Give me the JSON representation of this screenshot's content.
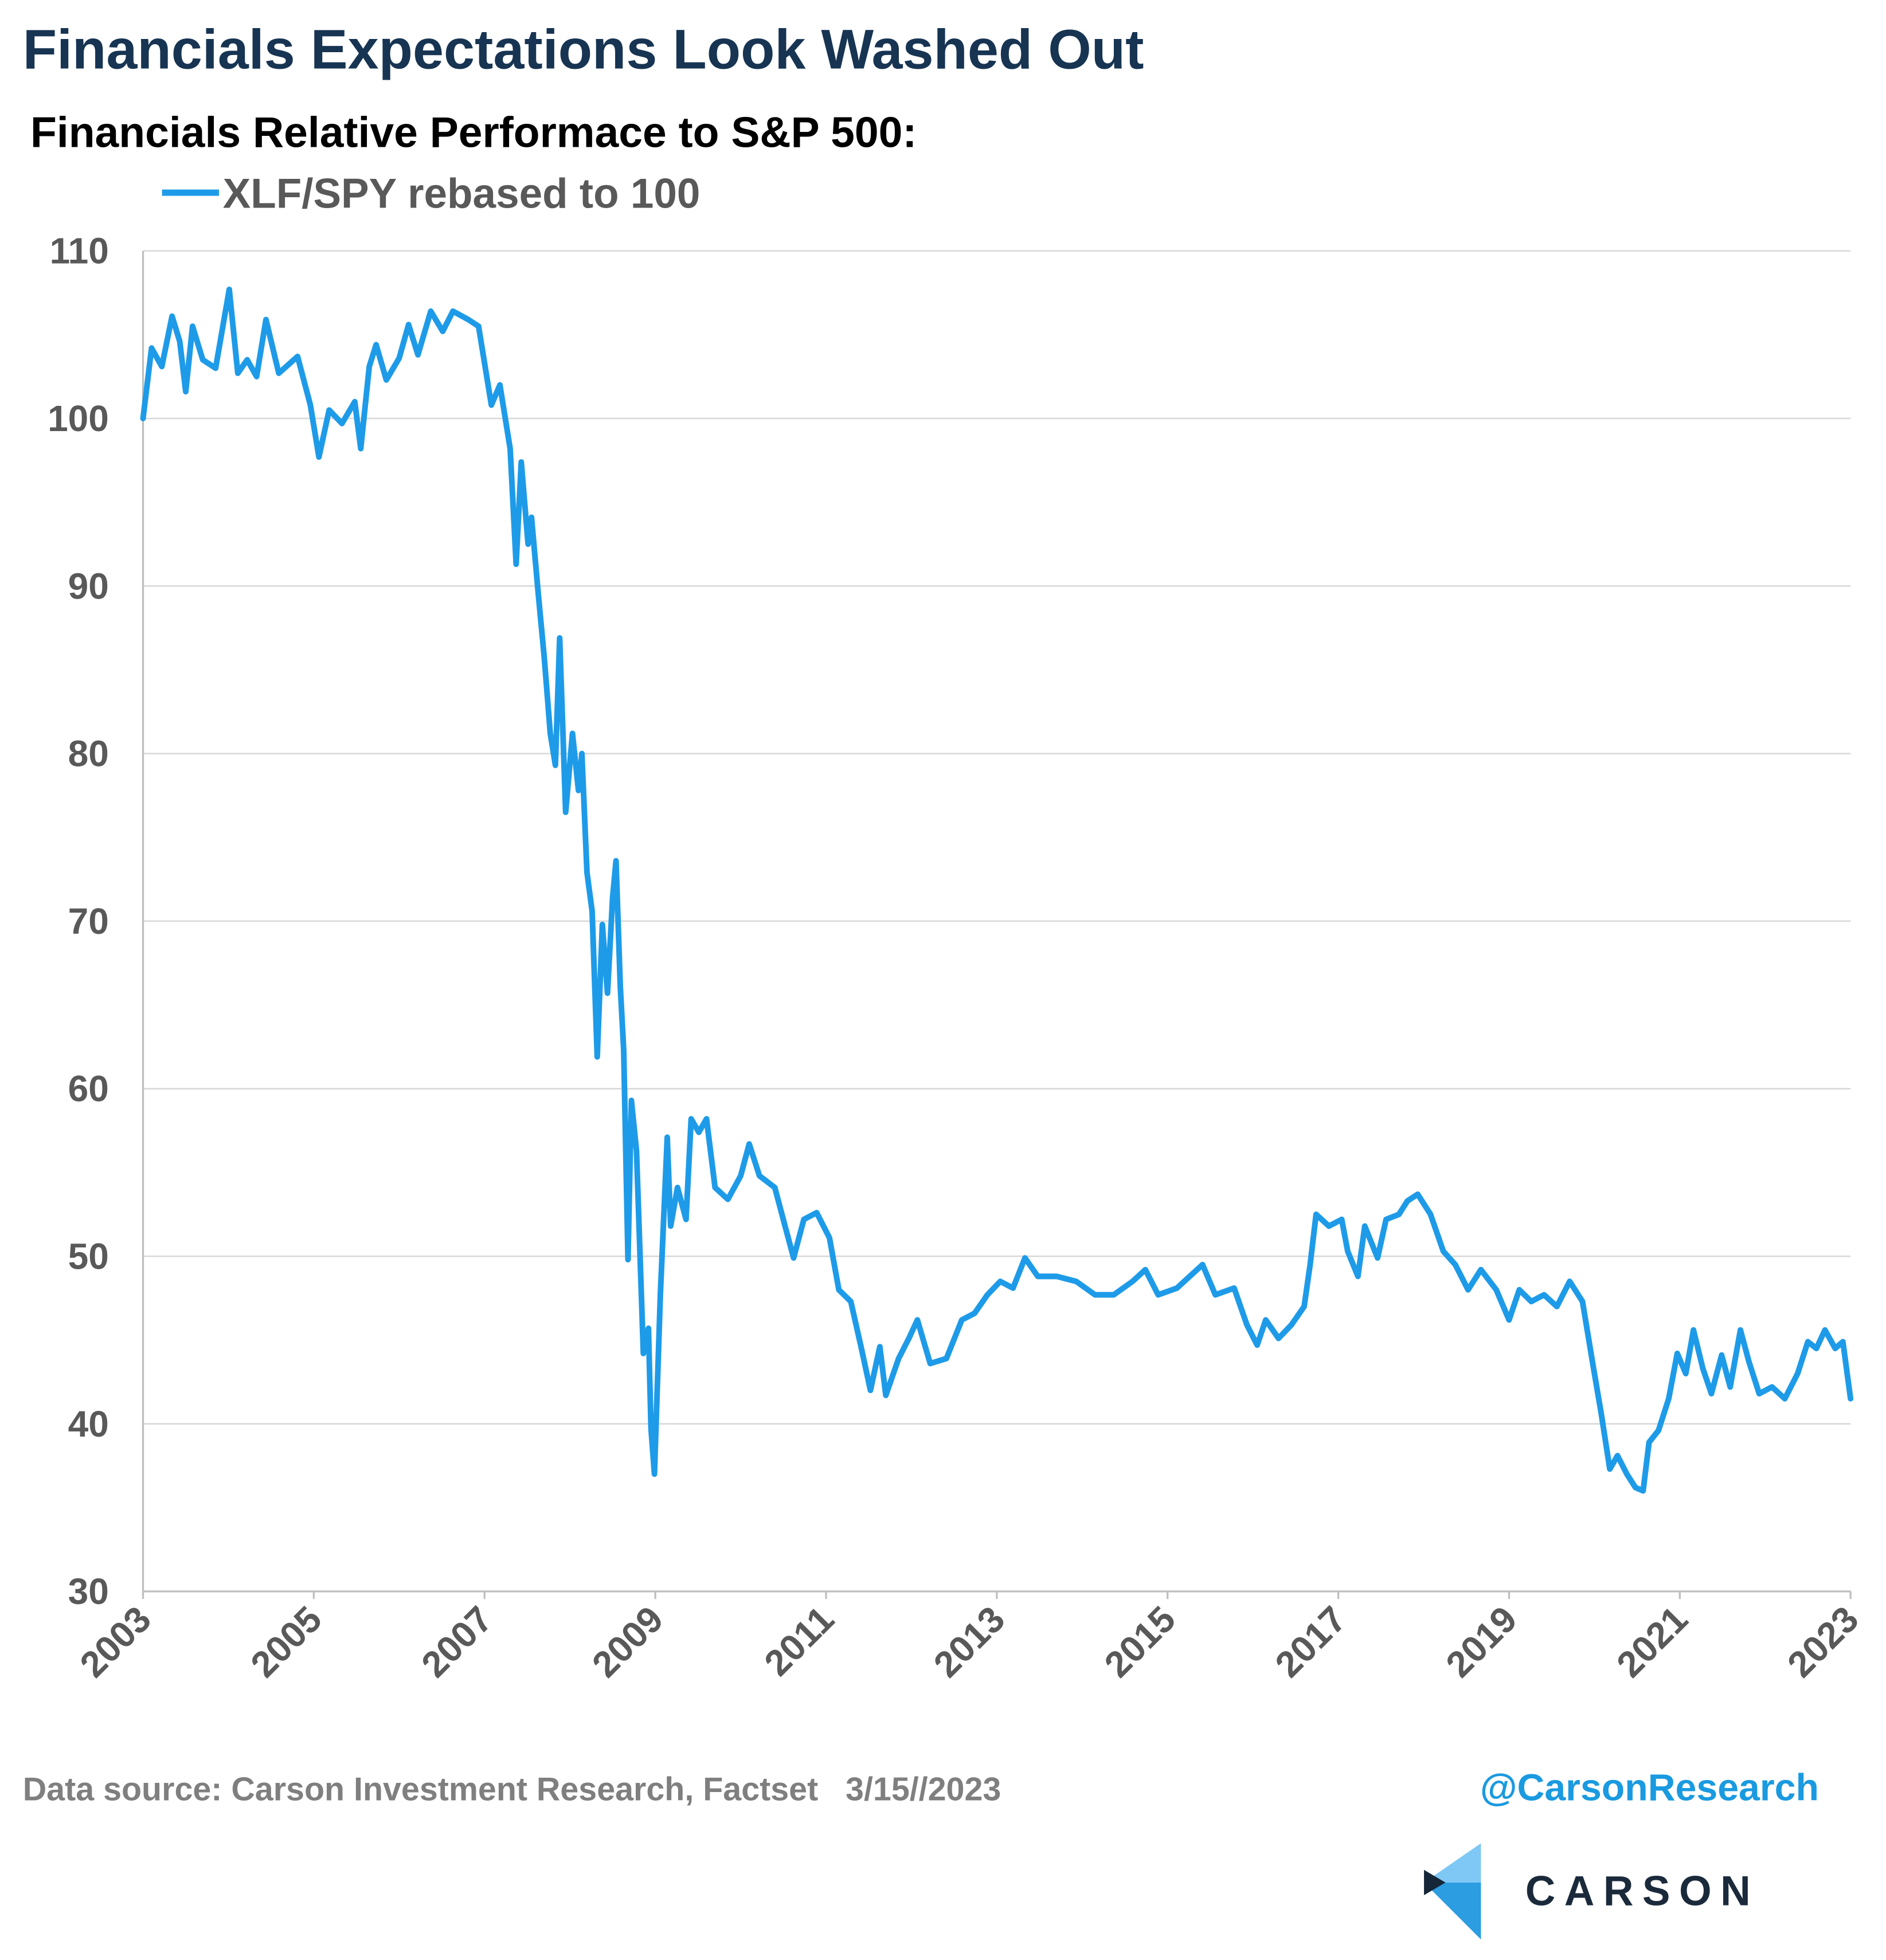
{
  "chart_data": {
    "type": "line",
    "title": "Financials Expectations Look Washed Out",
    "subtitle": "Financials Relative Performace to S&P 500:",
    "footer_source": "Data source: Carson Investment Research, Factset   3/15//2023",
    "footer_handle": "@CarsonResearch",
    "logo_text": "CARSON",
    "xlim": [
      2003,
      2023
    ],
    "xticks": [
      2003,
      2005,
      2007,
      2009,
      2011,
      2013,
      2015,
      2017,
      2019,
      2021,
      2023
    ],
    "ylim": [
      30,
      110
    ],
    "yticks": [
      30,
      40,
      50,
      60,
      70,
      80,
      90,
      100,
      110
    ],
    "grid": true,
    "x": [
      2003.0,
      2003.1,
      2003.22,
      2003.34,
      2003.43,
      2003.5,
      2003.58,
      2003.7,
      2003.85,
      2004.01,
      2004.11,
      2004.22,
      2004.33,
      2004.44,
      2004.59,
      2004.81,
      2004.96,
      2005.06,
      2005.18,
      2005.33,
      2005.48,
      2005.55,
      2005.65,
      2005.73,
      2005.85,
      2006.0,
      2006.11,
      2006.22,
      2006.37,
      2006.51,
      2006.63,
      2006.81,
      2006.93,
      2007.08,
      2007.18,
      2007.3,
      2007.37,
      2007.43,
      2007.51,
      2007.55,
      2007.63,
      2007.7,
      2007.77,
      2007.83,
      2007.88,
      2007.95,
      2008.03,
      2008.1,
      2008.14,
      2008.2,
      2008.26,
      2008.32,
      2008.38,
      2008.44,
      2008.5,
      2008.54,
      2008.59,
      2008.63,
      2008.68,
      2008.72,
      2008.78,
      2008.86,
      2008.92,
      2008.95,
      2008.99,
      2009.06,
      2009.14,
      2009.18,
      2009.26,
      2009.36,
      2009.42,
      2009.51,
      2009.6,
      2009.7,
      2009.85,
      2010.0,
      2010.1,
      2010.22,
      2010.4,
      2010.52,
      2010.62,
      2010.74,
      2010.89,
      2011.04,
      2011.15,
      2011.29,
      2011.41,
      2011.52,
      2011.63,
      2011.7,
      2011.85,
      2011.97,
      2012.07,
      2012.22,
      2012.41,
      2012.59,
      2012.74,
      2012.89,
      2013.04,
      2013.19,
      2013.33,
      2013.48,
      2013.7,
      2013.93,
      2014.15,
      2014.37,
      2014.59,
      2014.74,
      2014.89,
      2015.11,
      2015.26,
      2015.41,
      2015.56,
      2015.78,
      2015.93,
      2016.05,
      2016.15,
      2016.3,
      2016.45,
      2016.6,
      2016.67,
      2016.74,
      2016.89,
      2017.04,
      2017.11,
      2017.23,
      2017.31,
      2017.46,
      2017.56,
      2017.71,
      2017.81,
      2017.93,
      2018.08,
      2018.23,
      2018.37,
      2018.52,
      2018.67,
      2018.85,
      2019.0,
      2019.12,
      2019.26,
      2019.41,
      2019.56,
      2019.71,
      2019.86,
      2019.98,
      2020.08,
      2020.18,
      2020.27,
      2020.38,
      2020.48,
      2020.57,
      2020.64,
      2020.75,
      2020.87,
      2020.97,
      2021.07,
      2021.16,
      2021.27,
      2021.37,
      2021.49,
      2021.59,
      2021.71,
      2021.81,
      2021.93,
      2022.08,
      2022.23,
      2022.38,
      2022.5,
      2022.6,
      2022.7,
      2022.82,
      2022.91,
      2023.0
    ],
    "series": [
      {
        "name": "XLF/SPY rebased to 100",
        "color": "#1e9be8",
        "values": [
          100,
          104.2,
          103.1,
          106.1,
          104.6,
          101.6,
          105.5,
          103.5,
          103,
          107.7,
          102.7,
          103.5,
          102.5,
          105.9,
          102.7,
          103.7,
          100.8,
          97.7,
          100.5,
          99.7,
          101,
          98.2,
          103.1,
          104.4,
          102.3,
          103.6,
          105.6,
          103.8,
          106.4,
          105.2,
          106.4,
          105.9,
          105.5,
          100.8,
          102,
          98.2,
          91.3,
          97.4,
          92.5,
          94.1,
          89.5,
          85.7,
          81.2,
          79.3,
          86.9,
          76.5,
          81.2,
          77.8,
          80,
          72.9,
          70.6,
          61.9,
          69.8,
          65.7,
          71.4,
          73.6,
          66.1,
          62.3,
          49.8,
          59.3,
          56.3,
          44.2,
          45.7,
          39.7,
          37,
          47.8,
          57.1,
          51.8,
          54.1,
          52.2,
          58.2,
          57.4,
          58.2,
          54.1,
          53.4,
          54.8,
          56.7,
          54.8,
          54.1,
          51.8,
          49.9,
          52.2,
          52.6,
          51.1,
          48,
          47.3,
          44.6,
          42,
          44.6,
          41.7,
          43.9,
          45.1,
          46.2,
          43.6,
          43.9,
          46.2,
          46.6,
          47.7,
          48.5,
          48.1,
          49.9,
          48.8,
          48.8,
          48.5,
          47.7,
          47.7,
          48.5,
          49.2,
          47.7,
          48.1,
          48.8,
          49.5,
          47.7,
          48.1,
          45.9,
          44.7,
          46.2,
          45.1,
          45.9,
          47,
          49.5,
          52.5,
          51.8,
          52.2,
          50.3,
          48.8,
          51.8,
          49.9,
          52.2,
          52.5,
          53.3,
          53.7,
          52.5,
          50.3,
          49.5,
          48,
          49.2,
          48,
          46.2,
          48,
          47.3,
          47.7,
          47,
          48.5,
          47.3,
          43.6,
          40.6,
          37.3,
          38.1,
          37,
          36.2,
          36,
          38.9,
          39.6,
          41.5,
          44.2,
          43,
          45.6,
          43.3,
          41.8,
          44.1,
          42.2,
          45.6,
          43.7,
          41.8,
          42.2,
          41.5,
          43,
          44.9,
          44.5,
          45.6,
          44.5,
          44.9,
          41.5
        ]
      }
    ]
  }
}
